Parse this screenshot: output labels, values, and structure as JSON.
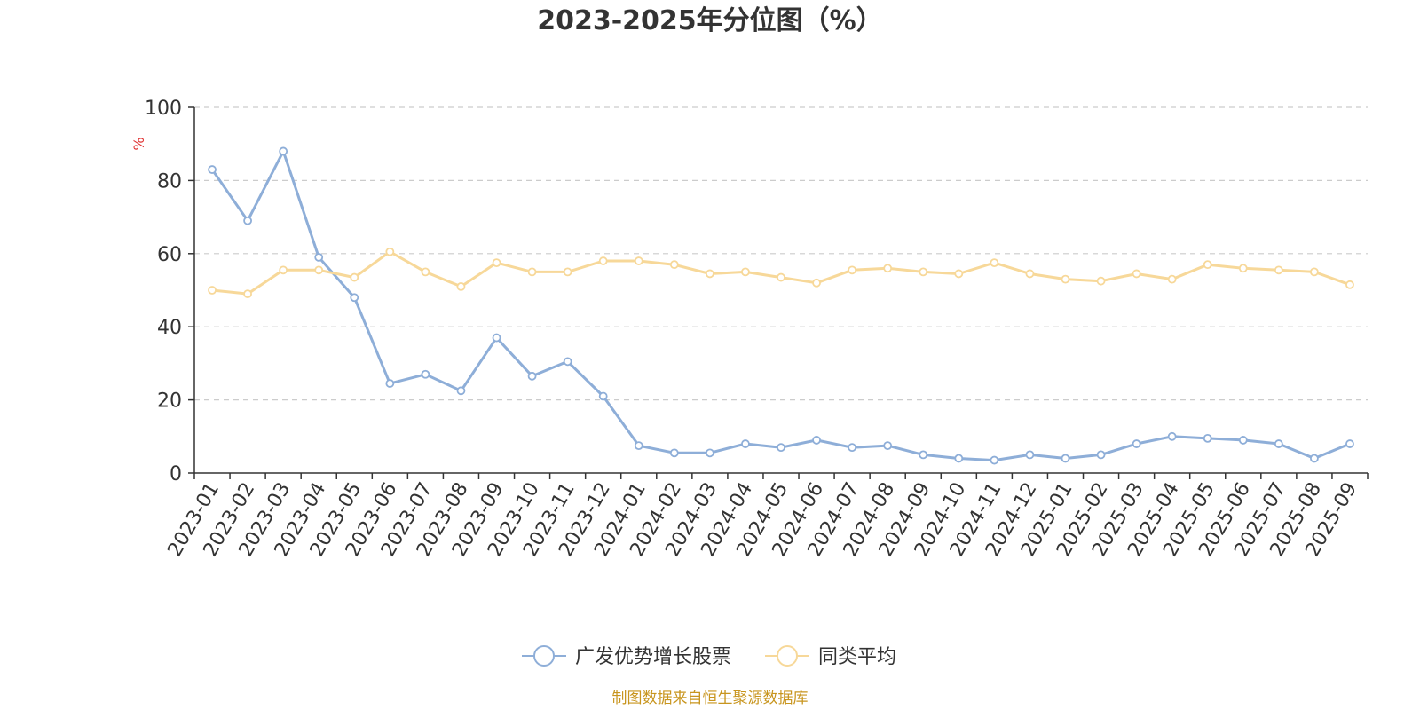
{
  "chart_data": {
    "type": "line",
    "title": "2023-2025年分位图（%）",
    "ylabel": "%",
    "xlabel": "",
    "ylim": [
      0,
      100
    ],
    "yticks": [
      0,
      20,
      40,
      60,
      80,
      100
    ],
    "grid": true,
    "legend_position": "bottom",
    "categories": [
      "2023-01",
      "2023-02",
      "2023-03",
      "2023-04",
      "2023-05",
      "2023-06",
      "2023-07",
      "2023-08",
      "2023-09",
      "2023-10",
      "2023-11",
      "2023-12",
      "2024-01",
      "2024-02",
      "2024-03",
      "2024-04",
      "2024-05",
      "2024-06",
      "2024-07",
      "2024-08",
      "2024-09",
      "2024-10",
      "2024-11",
      "2024-12",
      "2025-01",
      "2025-02",
      "2025-03",
      "2025-04",
      "2025-05",
      "2025-06",
      "2025-07",
      "2025-08",
      "2025-09"
    ],
    "series": [
      {
        "name": "广发优势增长股票",
        "color": "#8eaed8",
        "values": [
          83,
          69,
          88,
          59,
          48,
          24.5,
          27,
          22.5,
          37,
          26.5,
          30.5,
          21,
          7.5,
          5.5,
          5.5,
          8,
          7,
          9,
          7,
          7.5,
          5,
          4,
          3.5,
          5,
          4,
          5,
          8,
          10,
          9.5,
          9,
          8,
          4,
          8
        ]
      },
      {
        "name": "同类平均",
        "color": "#f7d899",
        "values": [
          50,
          49,
          55.5,
          55.5,
          53.5,
          60.5,
          55,
          51,
          57.5,
          55,
          55,
          58,
          58,
          57,
          54.5,
          55,
          53.5,
          52,
          55.5,
          56,
          55,
          54.5,
          57.5,
          54.5,
          53,
          52.5,
          54.5,
          53,
          57,
          56,
          55.5,
          55,
          51.5
        ]
      }
    ]
  },
  "footer": {
    "source": "制图数据来自恒生聚源数据库",
    "color": "#c8951e"
  },
  "colors": {
    "ylabel": "#e03030",
    "axis": "#333333",
    "grid": "#cccccc"
  }
}
